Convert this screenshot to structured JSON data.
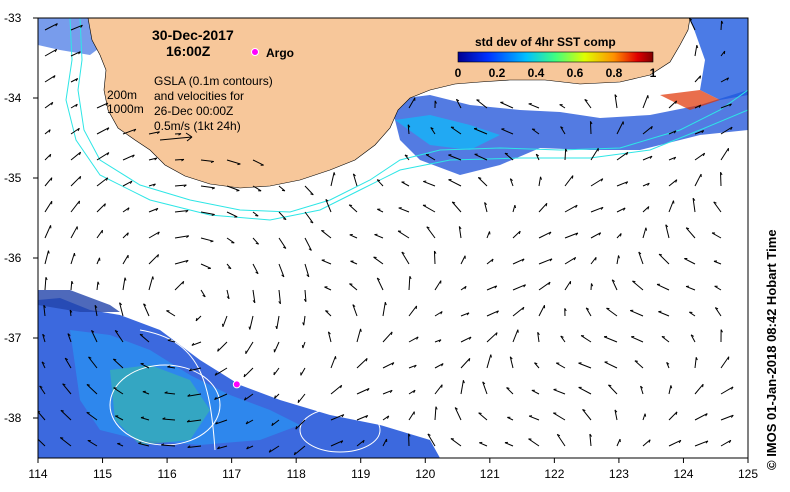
{
  "map": {
    "date": "30-Dec-2017",
    "time": "16:00Z",
    "argo_label": "Argo",
    "argo_position": {
      "lon": 117.08,
      "lat": -37.58
    },
    "gsla_lines": [
      "GSLA (0.1m contours)",
      "and velocities for",
      "26-Dec 00:00Z",
      "0.5m/s (1kt 24h)"
    ],
    "depth_labels": [
      "200m",
      "1000m"
    ],
    "colorbar": {
      "title": "std dev of 4hr SST comp",
      "ticks": [
        "0",
        "0.2",
        "0.4",
        "0.6",
        "0.8",
        "1"
      ],
      "range": [
        0,
        1
      ]
    },
    "axes": {
      "x_ticks": [
        "114",
        "115",
        "116",
        "117",
        "118",
        "119",
        "120",
        "121",
        "122",
        "123",
        "124",
        "125"
      ],
      "y_ticks": [
        "-33",
        "-34",
        "-35",
        "-36",
        "-37",
        "-38"
      ],
      "lon_range": [
        114,
        125
      ],
      "lat_range": [
        -38.5,
        -33
      ]
    },
    "credit": "© IMOS 01-Jan-2018 08:42 Hobart Time",
    "colors": {
      "land": "#f7c79a",
      "isobath": "#2ee6e6",
      "argo": "#ff00ff",
      "gsla_contour": "#ffffff",
      "ocean": "#ffffff"
    }
  }
}
